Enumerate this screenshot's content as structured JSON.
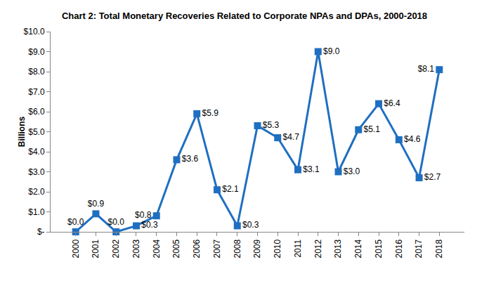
{
  "chart_data": {
    "type": "line",
    "title": "Chart 2: Total Monetary Recoveries Related to Corporate NPAs and DPAs, 2000-2018",
    "y_label": "Billions",
    "categories": [
      "2000",
      "2001",
      "2002",
      "2003",
      "2004",
      "2005",
      "2006",
      "2007",
      "2008",
      "2009",
      "2010",
      "2011",
      "2012",
      "2013",
      "2014",
      "2015",
      "2016",
      "2017",
      "2018"
    ],
    "values": [
      0.0,
      0.9,
      0.0,
      0.3,
      0.8,
      3.6,
      5.9,
      2.1,
      0.3,
      5.3,
      4.7,
      3.1,
      9.0,
      3.0,
      5.1,
      6.4,
      4.6,
      2.7,
      8.1
    ],
    "value_labels": [
      "$0.0",
      "$0.9",
      "$0.0",
      "$0.3",
      "$0.8",
      "$3.6",
      "$5.9",
      "$2.1",
      "$0.3",
      "$5.3",
      "$4.7",
      "$3.1",
      "$9.0",
      "$3.0",
      "$5.1",
      "$6.4",
      "$4.6",
      "$2.7",
      "$8.1"
    ],
    "data_labels": true,
    "color": "#1f6fc1",
    "marker": "square",
    "line_style": "solid",
    "grid": false,
    "ylim": [
      0,
      10
    ],
    "yticks": [
      {
        "value": 0,
        "label": "$-"
      },
      {
        "value": 1,
        "label": "$1.0"
      },
      {
        "value": 2,
        "label": "$2.0"
      },
      {
        "value": 3,
        "label": "$3.0"
      },
      {
        "value": 4,
        "label": "$4.0"
      },
      {
        "value": 5,
        "label": "$5.0"
      },
      {
        "value": 6,
        "label": "$6.0"
      },
      {
        "value": 7,
        "label": "$7.0"
      },
      {
        "value": 8,
        "label": "$8.0"
      },
      {
        "value": 9,
        "label": "$9.0"
      },
      {
        "value": 10,
        "label": "$10.0"
      }
    ]
  }
}
